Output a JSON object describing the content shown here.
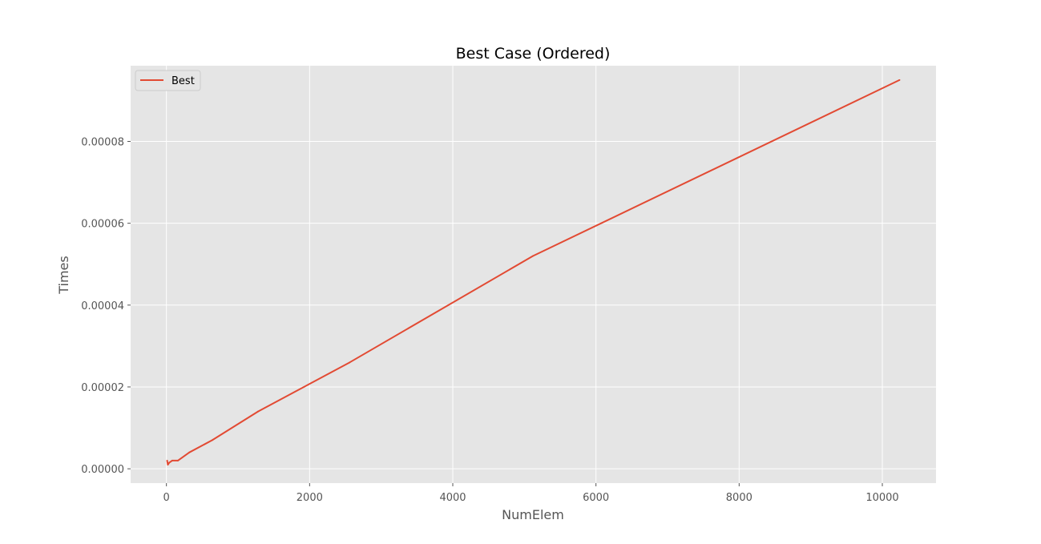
{
  "chart_data": {
    "type": "line",
    "title": "Best Case (Ordered)",
    "xlabel": "NumElem",
    "ylabel": "Times",
    "xlim": [
      -500,
      10750
    ],
    "ylim": [
      -3.5e-06,
      9.85e-05
    ],
    "xticks": [
      0,
      2000,
      4000,
      6000,
      8000,
      10000
    ],
    "xtick_labels": [
      "0",
      "2000",
      "4000",
      "6000",
      "8000",
      "10000"
    ],
    "yticks": [
      0,
      2e-05,
      4e-05,
      6e-05,
      8e-05
    ],
    "ytick_labels": [
      "0.00000",
      "0.00002",
      "0.00004",
      "0.00006",
      "0.00008"
    ],
    "grid": true,
    "legend_position": "top-left",
    "series": [
      {
        "name": "Best",
        "color": "#e24a33",
        "x": [
          10,
          20,
          40,
          80,
          160,
          320,
          640,
          1280,
          2560,
          5120,
          10240
        ],
        "y": [
          2e-06,
          1e-06,
          1.5e-06,
          2e-06,
          2e-06,
          4e-06,
          7e-06,
          1.4e-05,
          2.6e-05,
          5.2e-05,
          9.5e-05
        ]
      }
    ]
  }
}
